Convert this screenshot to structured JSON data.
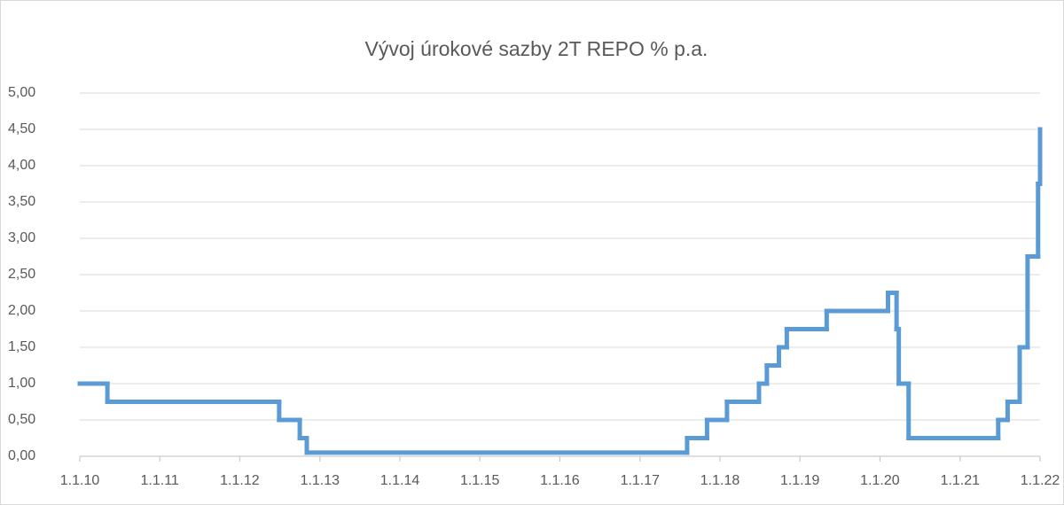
{
  "chart_data": {
    "type": "line",
    "step": "post",
    "title": "Vývoj úrokové sazby 2T REPO % p.a.",
    "x": [
      "2010-01-01",
      "2010-05-07",
      "2012-06-29",
      "2012-10-01",
      "2012-11-02",
      "2017-08-04",
      "2017-11-03",
      "2018-02-02",
      "2018-06-28",
      "2018-08-03",
      "2018-09-27",
      "2018-11-02",
      "2019-05-03",
      "2020-02-07",
      "2020-03-17",
      "2020-03-27",
      "2020-05-11",
      "2021-06-24",
      "2021-08-06",
      "2021-09-30",
      "2021-11-05",
      "2021-12-23",
      "2022-01-01"
    ],
    "series": [
      {
        "name": "2T REPO",
        "color": "#5b9bd5",
        "values": [
          1.0,
          0.75,
          0.5,
          0.25,
          0.05,
          0.25,
          0.5,
          0.75,
          1.0,
          1.25,
          1.5,
          1.75,
          2.0,
          2.25,
          1.75,
          1.0,
          0.25,
          0.5,
          0.75,
          1.5,
          2.75,
          3.75,
          4.5
        ]
      }
    ],
    "xlim": [
      "2010-01-01",
      "2022-01-01"
    ],
    "xticks": [
      {
        "value": "2010-01-01",
        "label": "1.1.10"
      },
      {
        "value": "2011-01-01",
        "label": "1.1.11"
      },
      {
        "value": "2012-01-01",
        "label": "1.1.12"
      },
      {
        "value": "2013-01-01",
        "label": "1.1.13"
      },
      {
        "value": "2014-01-01",
        "label": "1.1.14"
      },
      {
        "value": "2015-01-01",
        "label": "1.1.15"
      },
      {
        "value": "2016-01-01",
        "label": "1.1.16"
      },
      {
        "value": "2017-01-01",
        "label": "1.1.17"
      },
      {
        "value": "2018-01-01",
        "label": "1.1.18"
      },
      {
        "value": "2019-01-01",
        "label": "1.1.19"
      },
      {
        "value": "2020-01-01",
        "label": "1.1.20"
      },
      {
        "value": "2021-01-01",
        "label": "1.1.21"
      },
      {
        "value": "2022-01-01",
        "label": "1.1.22"
      }
    ],
    "ylim": [
      0,
      5
    ],
    "yticks": [
      {
        "value": 0,
        "label": "0,00"
      },
      {
        "value": 0.5,
        "label": "0,50"
      },
      {
        "value": 1,
        "label": "1,00"
      },
      {
        "value": 1.5,
        "label": "1,50"
      },
      {
        "value": 2,
        "label": "2,00"
      },
      {
        "value": 2.5,
        "label": "2,50"
      },
      {
        "value": 3,
        "label": "3,00"
      },
      {
        "value": 3.5,
        "label": "3,50"
      },
      {
        "value": 4,
        "label": "4,00"
      },
      {
        "value": 4.5,
        "label": "4,50"
      },
      {
        "value": 5,
        "label": "5,00"
      }
    ],
    "grid": true
  }
}
